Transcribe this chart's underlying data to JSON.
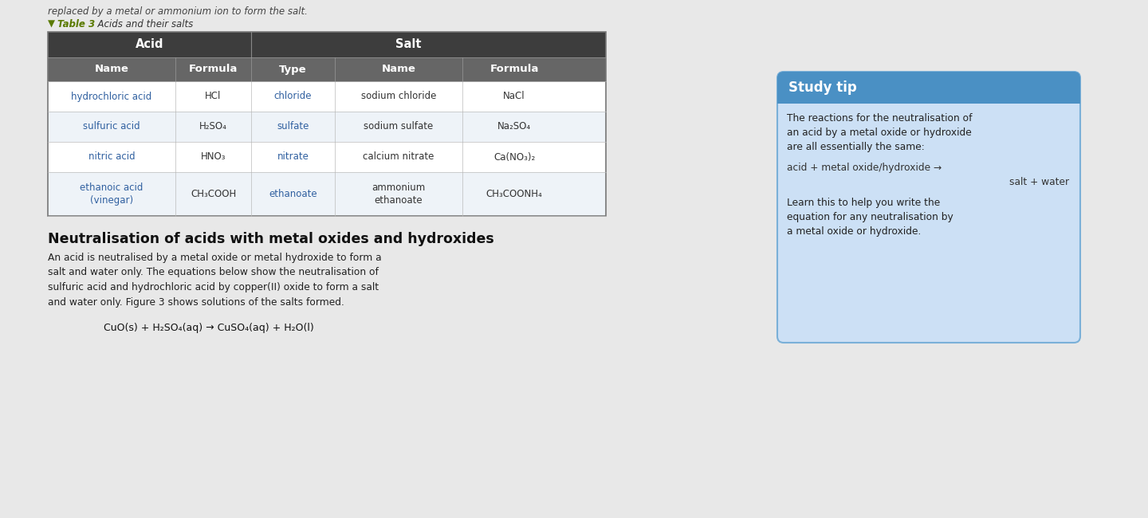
{
  "bg_color": "#e8e8e8",
  "top_text": "replaced by a metal or ammonium ion to form the salt.",
  "table_caption_arrow": "▼",
  "table_caption_label": "Table 3",
  "table_caption_text": "  Acids and their salts",
  "table_caption_color": "#5a7a00",
  "header1_bg": "#3d3d3d",
  "header2_bg": "#666666",
  "row_bg_odd": "#ffffff",
  "row_bg_even": "#eef3f8",
  "col_headers": [
    "Name",
    "Formula",
    "Type",
    "Name",
    "Formula"
  ],
  "rows": [
    {
      "cells": [
        {
          "text": "hydrochloric acid",
          "color": "#3060a0"
        },
        {
          "text": "HCl",
          "color": "#333333"
        },
        {
          "text": "chloride",
          "color": "#3060a0"
        },
        {
          "text": "sodium chloride",
          "color": "#333333"
        },
        {
          "text": "NaCl",
          "color": "#333333"
        }
      ]
    },
    {
      "cells": [
        {
          "text": "sulfuric acid",
          "color": "#3060a0"
        },
        {
          "text": "H₂SO₄",
          "color": "#333333"
        },
        {
          "text": "sulfate",
          "color": "#3060a0"
        },
        {
          "text": "sodium sulfate",
          "color": "#333333"
        },
        {
          "text": "Na₂SO₄",
          "color": "#333333"
        }
      ]
    },
    {
      "cells": [
        {
          "text": "nitric acid",
          "color": "#3060a0"
        },
        {
          "text": "HNO₃",
          "color": "#333333"
        },
        {
          "text": "nitrate",
          "color": "#3060a0"
        },
        {
          "text": "calcium nitrate",
          "color": "#333333"
        },
        {
          "text": "Ca(NO₃)₂",
          "color": "#333333"
        }
      ]
    },
    {
      "cells": [
        {
          "text": "ethanoic acid\n(vinegar)",
          "color": "#3060a0"
        },
        {
          "text": "CH₃COOH",
          "color": "#333333"
        },
        {
          "text": "ethanoate",
          "color": "#3060a0"
        },
        {
          "text": "ammonium\nethanoate",
          "color": "#333333"
        },
        {
          "text": "CH₃COONH₄",
          "color": "#333333"
        }
      ]
    }
  ],
  "section_title": "Neutralisation of acids with metal oxides and hydroxides",
  "section_body": "An acid is neutralised by a metal oxide or metal hydroxide to form a\nsalt and water only. The equations below show the neutralisation of\nsulfuric acid and hydrochloric acid by copper(II) oxide to form a salt\nand water only. Figure 3 shows solutions of the salts formed.",
  "equation_bottom": "CuO(s) + H₂SO₄(aq) → CuSO₄(aq) + H₂O(l)",
  "study_tip_header_bg": "#4a90c4",
  "study_tip_body_bg": "#cce0f5",
  "study_tip_border": "#7ab0d8",
  "study_tip_title": "Study tip",
  "study_tip_body1": "The reactions for the neutralisation of\nan acid by a metal oxide or hydroxide\nare all essentially the same:",
  "study_tip_equation1": "acid + metal oxide/hydroxide →",
  "study_tip_equation2": "salt + water",
  "study_tip_body2": "Learn this to help you write the\nequation for any neutralisation by\na metal oxide or hydroxide."
}
